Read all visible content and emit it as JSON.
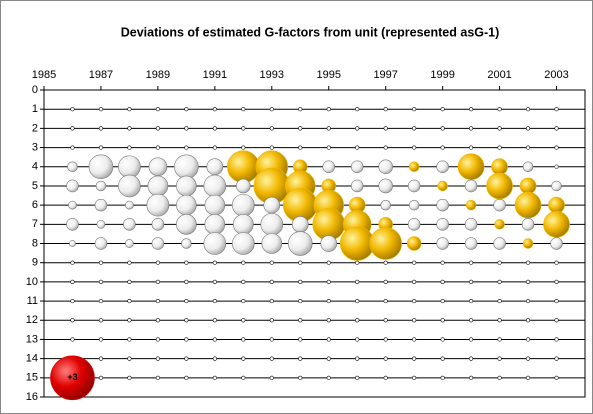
{
  "chart_data": {
    "type": "bubble",
    "title": "Deviations of estimated G-factors from unit (represented asG-1)",
    "x": [
      1986,
      1986,
      1986,
      1986,
      1986,
      1987,
      1987,
      1987,
      1987,
      1987,
      1988,
      1988,
      1988,
      1988,
      1988,
      1989,
      1989,
      1989,
      1989,
      1989,
      1990,
      1990,
      1990,
      1990,
      1990,
      1991,
      1991,
      1991,
      1991,
      1991,
      1992,
      1992,
      1992,
      1992,
      1992,
      1993,
      1993,
      1993,
      1993,
      1993,
      1994,
      1994,
      1994,
      1994,
      1994,
      1995,
      1995,
      1995,
      1995,
      1995,
      1996,
      1996,
      1996,
      1996,
      1996,
      1997,
      1997,
      1997,
      1997,
      1997,
      1998,
      1998,
      1998,
      1998,
      1998,
      1999,
      1999,
      1999,
      1999,
      1999,
      2000,
      2000,
      2000,
      2000,
      2000,
      2001,
      2001,
      2001,
      2001,
      2001,
      2002,
      2002,
      2002,
      2002,
      2002,
      2003,
      2003,
      2003,
      2003,
      2003
    ],
    "y": [
      4,
      5,
      6,
      7,
      8,
      4,
      5,
      6,
      7,
      8,
      4,
      5,
      6,
      7,
      8,
      4,
      5,
      6,
      7,
      8,
      4,
      5,
      6,
      7,
      8,
      4,
      5,
      6,
      7,
      8,
      4,
      5,
      6,
      7,
      8,
      4,
      5,
      6,
      7,
      8,
      4,
      5,
      6,
      7,
      8,
      4,
      5,
      6,
      7,
      8,
      4,
      5,
      6,
      7,
      8,
      4,
      5,
      6,
      7,
      8,
      4,
      5,
      6,
      7,
      8,
      4,
      5,
      6,
      7,
      8,
      4,
      5,
      6,
      7,
      8,
      4,
      5,
      6,
      7,
      8,
      4,
      5,
      6,
      7,
      8,
      4,
      5,
      6,
      7,
      8
    ],
    "sizes": [
      -0.15,
      -0.22,
      -0.1,
      -0.22,
      -0.06,
      -0.89,
      -0.15,
      -0.22,
      -0.1,
      -0.22,
      -0.75,
      -0.75,
      -0.1,
      -0.22,
      -0.1,
      -0.5,
      -0.62,
      -0.75,
      -0.22,
      -0.22,
      -0.89,
      -0.62,
      -0.62,
      -0.62,
      -0.15,
      -0.4,
      -0.75,
      -0.62,
      -0.62,
      -0.75,
      1.59,
      -0.3,
      -0.75,
      -0.62,
      -0.75,
      1.59,
      2.0,
      -0.4,
      -0.75,
      -0.62,
      0.3,
      1.39,
      1.79,
      -0.4,
      -0.89,
      -0.22,
      0.3,
      1.39,
      1.59,
      -0.4,
      -0.22,
      -0.22,
      0.4,
      1.21,
      1.79,
      -0.3,
      -0.3,
      -0.15,
      0.3,
      1.59,
      0.15,
      -0.22,
      -0.15,
      -0.22,
      0.3,
      -0.22,
      0.15,
      -0.22,
      -0.22,
      -0.22,
      1.05,
      -0.22,
      0.15,
      -0.22,
      -0.22,
      0.4,
      1.05,
      -0.22,
      0.15,
      -0.22,
      -0.15,
      0.4,
      1.05,
      -0.22,
      0.15,
      -0.02,
      -0.15,
      0.4,
      1.05,
      -0.22
    ],
    "positive_color": "#f2b800",
    "negative_color": "#e8e8e8",
    "legend_bubble": {
      "x": 1986,
      "y": 15,
      "size": 3,
      "label": "+3",
      "color": "#e00000"
    },
    "xlim": [
      1985,
      2004
    ],
    "xticks": [
      1985,
      1987,
      1989,
      1991,
      1993,
      1995,
      1997,
      1999,
      2001,
      2003
    ],
    "ylim": [
      0,
      16
    ],
    "y_inverted": true,
    "yticks": [
      0,
      1,
      2,
      3,
      4,
      5,
      6,
      7,
      8,
      9,
      10,
      11,
      12,
      13,
      14,
      15,
      16
    ],
    "grid": true
  }
}
